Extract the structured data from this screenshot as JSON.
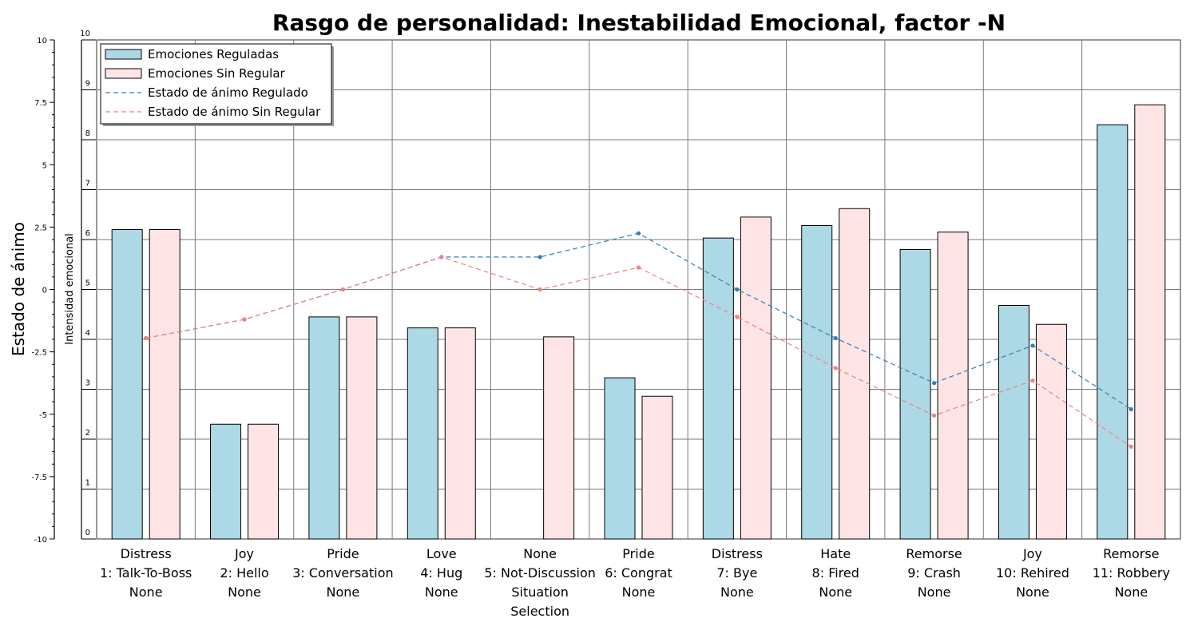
{
  "chart_data": {
    "type": "bar",
    "title": "Rasgo de personalidad: Inestabilidad Emocional, factor -N",
    "left_axis": {
      "label": "Estado de ánimo",
      "ylim": [
        -10,
        10
      ],
      "ticks": [
        "10",
        "7.5",
        "5",
        "2.5",
        "0",
        "-2.5",
        "-5",
        "-7.5",
        "-10"
      ]
    },
    "right_axis": {
      "label": "Intensidad emocional",
      "ylim": [
        0,
        10
      ],
      "ticks": [
        "10",
        "9",
        "8",
        "7",
        "6",
        "5",
        "4",
        "3",
        "2",
        "1",
        "0"
      ]
    },
    "grid": true,
    "legend_position": "top-left",
    "categories": [
      [
        "Distress",
        "1: Talk-To-Boss",
        "None"
      ],
      [
        "Joy",
        "2: Hello",
        "None"
      ],
      [
        "Pride",
        "3: Conversation",
        "None"
      ],
      [
        "Love",
        "4: Hug",
        "None"
      ],
      [
        "None",
        "5: Not-Discussion",
        "Situation",
        "Selection"
      ],
      [
        "Pride",
        "6: Congrat",
        "None"
      ],
      [
        "Distress",
        "7: Bye",
        "None"
      ],
      [
        "Hate",
        "8: Fired",
        "None"
      ],
      [
        "Remorse",
        "9: Crash",
        "None"
      ],
      [
        "Joy",
        "10: Rehired",
        "None"
      ],
      [
        "Remorse",
        "11: Robbery",
        "None"
      ]
    ],
    "bar_series": [
      {
        "name": "Emociones Reguladas",
        "color": "#add8e6",
        "axis": "right",
        "values": [
          6.2,
          2.3,
          4.45,
          4.23,
          null,
          3.23,
          6.03,
          6.28,
          5.8,
          4.68,
          8.3
        ]
      },
      {
        "name": "Emociones Sin Regular",
        "color": "#ffe4e6",
        "axis": "right",
        "values": [
          6.2,
          2.3,
          4.45,
          4.23,
          4.05,
          2.86,
          6.45,
          6.62,
          6.15,
          4.3,
          8.7
        ]
      }
    ],
    "line_series": [
      {
        "name": "Estado de ánimo Regulado",
        "color": "#2f7fb5",
        "axis": "left",
        "style": "dashed",
        "values": [
          -1.95,
          -1.2,
          0.0,
          1.3,
          1.3,
          2.25,
          0.0,
          -1.95,
          -3.75,
          -2.25,
          -4.8
        ]
      },
      {
        "name": "Estado de ánimo Sin Regular",
        "color": "#f08080",
        "axis": "left",
        "style": "dashed",
        "values": [
          -1.95,
          -1.2,
          0.0,
          1.3,
          0.0,
          0.88,
          -1.1,
          -3.15,
          -5.05,
          -3.65,
          -6.3
        ]
      }
    ]
  }
}
